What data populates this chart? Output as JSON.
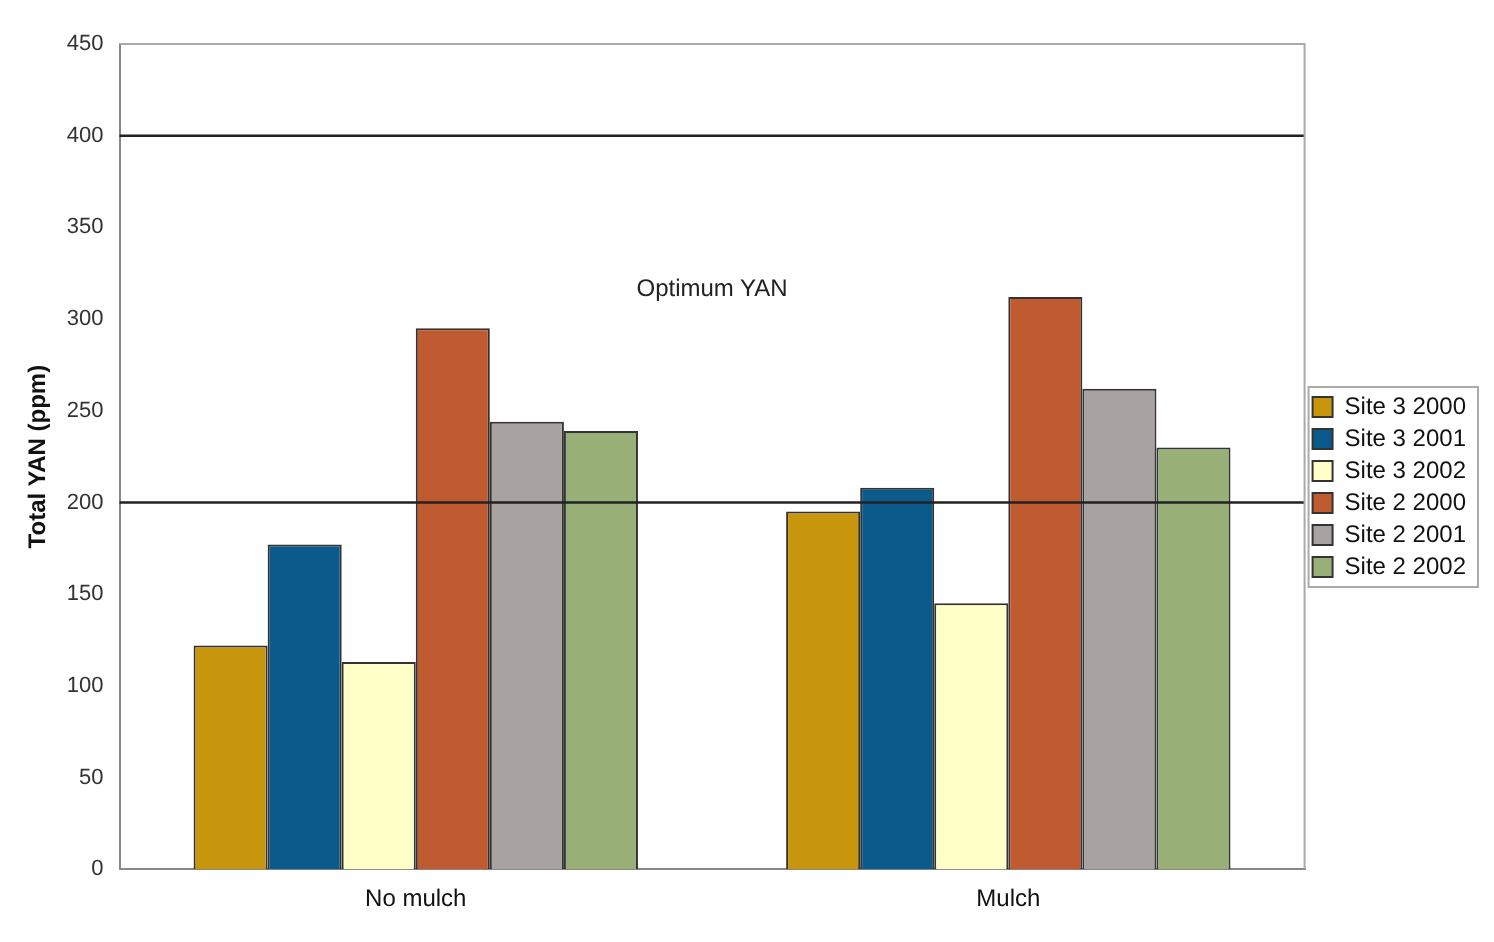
{
  "chart_data": {
    "type": "bar",
    "ylabel": "Total YAN (ppm)",
    "categories": [
      "No mulch",
      "Mulch"
    ],
    "series": [
      {
        "name": "Site 3 2000",
        "color": "#c8960c",
        "values": [
          122,
          195
        ]
      },
      {
        "name": "Site 3 2001",
        "color": "#0a5a8c",
        "values": [
          177,
          208
        ]
      },
      {
        "name": "Site 3 2002",
        "color": "#ffffc8",
        "values": [
          113,
          145
        ]
      },
      {
        "name": "Site 2 2000",
        "color": "#c05a30",
        "values": [
          295,
          312
        ]
      },
      {
        "name": "Site 2 2001",
        "color": "#a8a3a0",
        "values": [
          244,
          262
        ]
      },
      {
        "name": "Site 2 2002",
        "color": "#98b078",
        "values": [
          239,
          230
        ]
      }
    ],
    "ylim": [
      0,
      450
    ],
    "yticks": [
      0,
      50,
      100,
      150,
      200,
      250,
      300,
      350,
      400,
      450
    ],
    "grid": false,
    "legend": "right",
    "ref_lines": [
      {
        "axis": "y",
        "value": 200,
        "color": "#222222"
      },
      {
        "axis": "y",
        "value": 400,
        "color": "#222222"
      }
    ],
    "annotations": [
      "Optimum YAN"
    ]
  }
}
